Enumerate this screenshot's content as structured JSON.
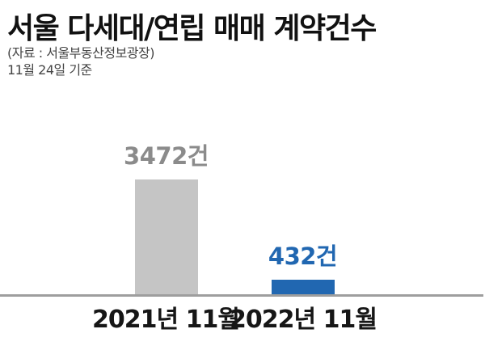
{
  "page": {
    "title": "서울 다세대/연립 매매 계약건수",
    "source_line": "(자료 : 서울부동산정보광장)",
    "as_of_line": "11월 24일 기준"
  },
  "colors": {
    "title_text": "#111111",
    "subtitle_text": "#454545",
    "axis_line": "#9e9e9e",
    "category_text": "#161616",
    "bar_2021": "#c5c5c5",
    "bar_2022": "#2167b1",
    "value_label_2021": "#8b8b8b",
    "value_label_2022": "#2167b1"
  },
  "chart_data": {
    "type": "bar",
    "title": "서울 다세대/연립 매매 계약건수",
    "source": "(자료 : 서울부동산정보광장)",
    "as_of": "11월 24일 기준",
    "categories": [
      "2021년 11월",
      "2022년 11월"
    ],
    "values": [
      3472,
      432
    ],
    "value_labels": [
      "3472건",
      "432건"
    ],
    "unit": "건",
    "ylim": [
      0,
      3472
    ],
    "bar_colors": [
      "#c5c5c5",
      "#2167b1"
    ],
    "value_label_colors": [
      "#8b8b8b",
      "#2167b1"
    ],
    "grid": false,
    "legend": false,
    "baseline_axis": true
  }
}
